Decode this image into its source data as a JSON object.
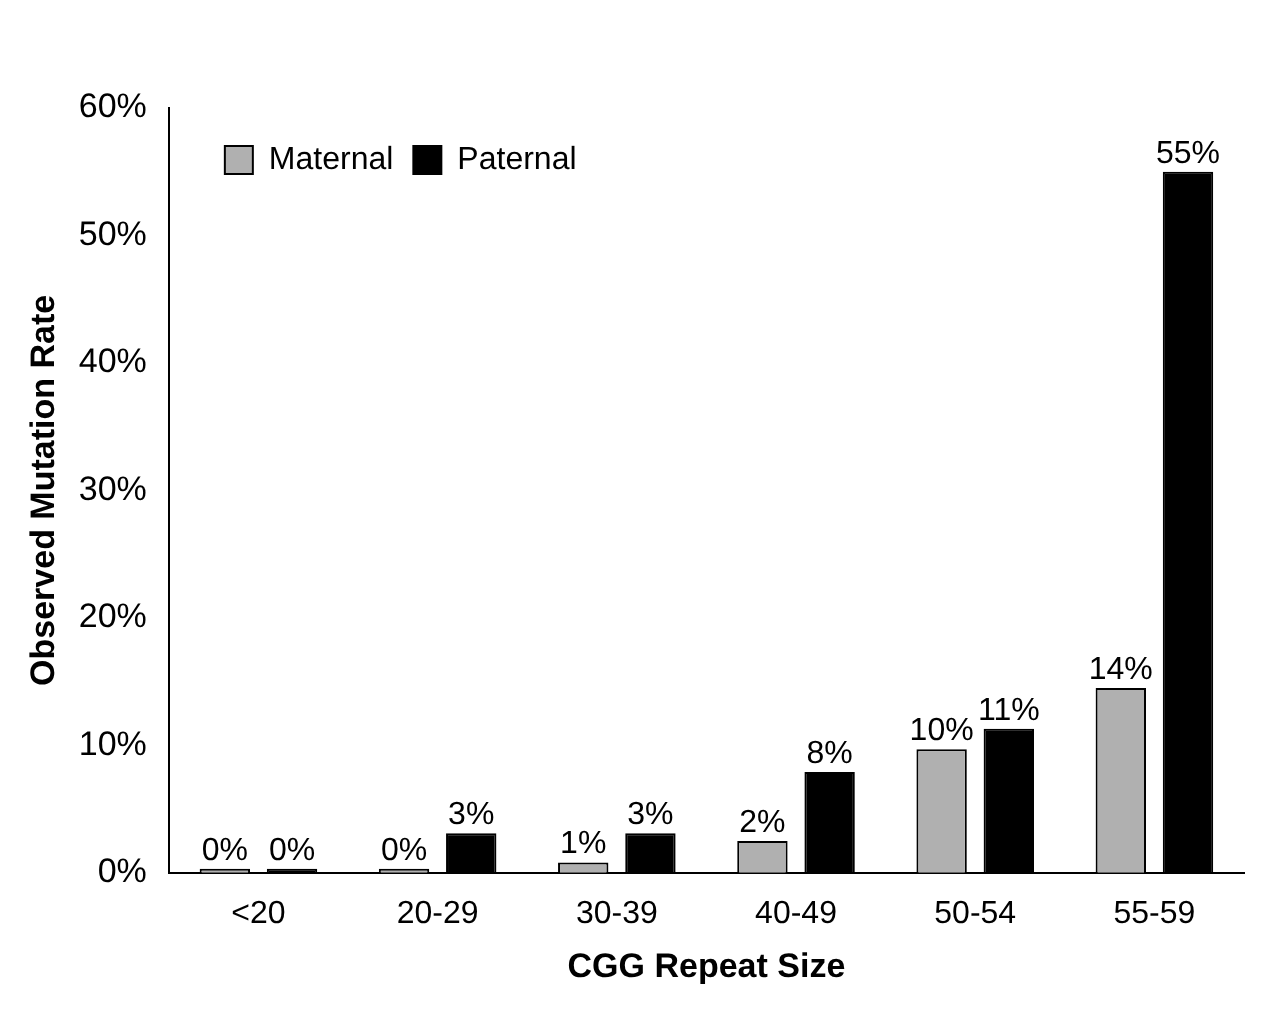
{
  "chart_data": {
    "type": "bar",
    "xlabel": "CGG Repeat Size",
    "ylabel": "Observed Mutation Rate",
    "categories": [
      "<20",
      "20-29",
      "30-39",
      "40-49",
      "50-54",
      "55-59"
    ],
    "series": [
      {
        "name": "Maternal",
        "color": "#b0b0b0",
        "values": [
          0,
          0.3,
          0.8,
          2.5,
          9.7,
          14.5
        ],
        "value_labels": [
          "0%",
          "0%",
          "1%",
          "2%",
          "10%",
          "14%"
        ]
      },
      {
        "name": "Paternal",
        "color": "#000000",
        "values": [
          0,
          3.1,
          3.1,
          7.9,
          11.3,
          55
        ],
        "value_labels": [
          "0%",
          "3%",
          "3%",
          "8%",
          "11%",
          "55%"
        ]
      }
    ],
    "ylim": [
      0,
      60
    ],
    "yticks": [
      {
        "value": 0,
        "label": "0%"
      },
      {
        "value": 10,
        "label": "10%"
      },
      {
        "value": 20,
        "label": "20%"
      },
      {
        "value": 30,
        "label": "30%"
      },
      {
        "value": 40,
        "label": "40%"
      },
      {
        "value": 50,
        "label": "50%"
      },
      {
        "value": 60,
        "label": "60%"
      }
    ],
    "grid": false,
    "legend": "top left"
  }
}
